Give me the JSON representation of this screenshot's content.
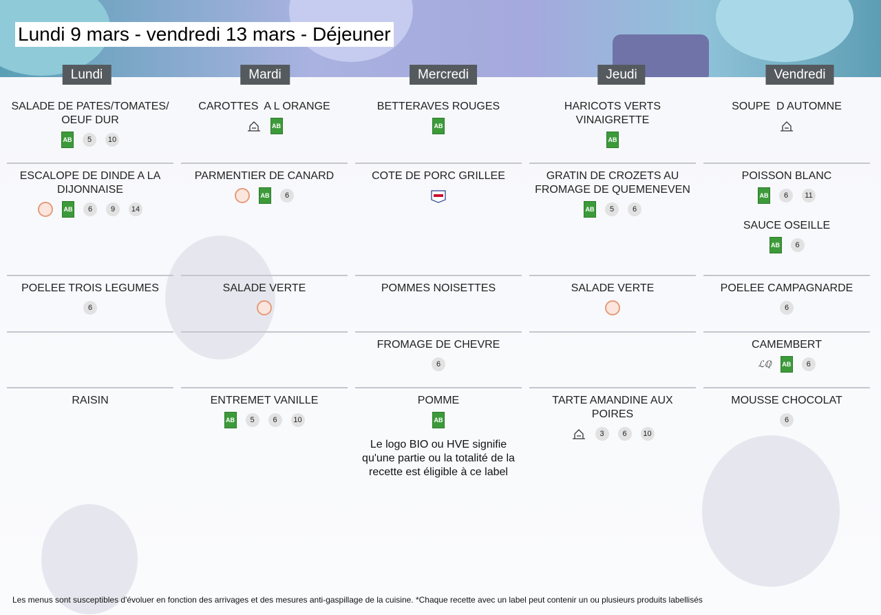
{
  "title": "Lundi 9 mars - vendredi 13 mars  - Déjeuner",
  "days": [
    "Lundi",
    "Mardi",
    "Mercredi",
    "Jeudi",
    "Vendredi"
  ],
  "rows": [
    [
      [
        {
          "name": "SALADE DE PATES/TOMATES/ OEUF DUR",
          "allergens": [
            5,
            10
          ]
        }
      ],
      [
        {
          "name": "CAROTTES  A L ORANGE",
          "allergens": []
        }
      ],
      [
        {
          "name": "BETTERAVES ROUGES",
          "allergens": []
        }
      ],
      [
        {
          "name": "HARICOTS VERTS VINAIGRETTE",
          "allergens": []
        }
      ],
      [
        {
          "name": "SOUPE  D AUTOMNE",
          "allergens": []
        }
      ]
    ],
    [
      [
        {
          "name": "ESCALOPE DE DINDE A LA DIJONNAISE",
          "allergens": [
            6,
            9,
            14
          ]
        }
      ],
      [
        {
          "name": "PARMENTIER DE CANARD",
          "allergens": [
            6
          ]
        }
      ],
      [
        {
          "name": "COTE DE PORC GRILLEE",
          "allergens": []
        }
      ],
      [
        {
          "name": "GRATIN DE CROZETS AU FROMAGE DE QUEMENEVEN",
          "allergens": [
            5,
            6
          ]
        }
      ],
      [
        {
          "name": "POISSON BLANC",
          "allergens": [
            6,
            11
          ]
        },
        {
          "name": "SAUCE OSEILLE",
          "allergens": [
            6
          ]
        }
      ]
    ],
    [
      [
        {
          "name": "POELEE TROIS LEGUMES",
          "allergens": [
            6
          ]
        }
      ],
      [
        {
          "name": "SALADE VERTE",
          "allergens": []
        }
      ],
      [
        {
          "name": "POMMES NOISETTES",
          "allergens": []
        }
      ],
      [
        {
          "name": "SALADE VERTE",
          "allergens": []
        }
      ],
      [
        {
          "name": "POELEE CAMPAGNARDE",
          "allergens": [
            6
          ]
        }
      ]
    ],
    [
      [],
      [],
      [
        {
          "name": "FROMAGE DE CHEVRE",
          "allergens": [
            6
          ]
        }
      ],
      [],
      [
        {
          "name": "CAMEMBERT",
          "allergens": [
            6
          ]
        }
      ]
    ],
    [
      [
        {
          "name": "RAISIN",
          "allergens": []
        }
      ],
      [
        {
          "name": "ENTREMET VANILLE",
          "allergens": [
            5,
            6,
            10
          ]
        }
      ],
      [
        {
          "name": "POMME",
          "allergens": []
        }
      ],
      [
        {
          "name": "TARTE AMANDINE AUX POIRES",
          "allergens": [
            3,
            6,
            10
          ]
        }
      ],
      [
        {
          "name": "MOUSSE CHOCOLAT",
          "allergens": [
            6
          ]
        }
      ]
    ]
  ],
  "note": "Le logo BIO ou HVE signifie qu'une partie ou la totalité de la recette est éligible à ce label",
  "footer": "Les menus sont susceptibles d'évoluer en fonction des arrivages et des mesures anti-gaspillage de la cuisine. *Chaque recette avec un label peut contenir un ou plusieurs produits labellisés"
}
